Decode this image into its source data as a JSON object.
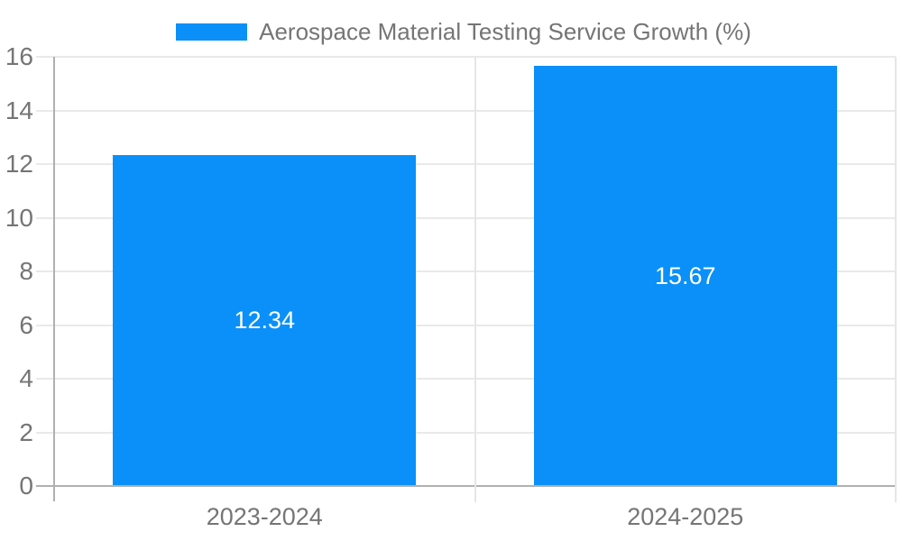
{
  "colors": {
    "bar": "#0a90f8",
    "grid": "#e9e9e9",
    "axis": "#b0b0b0",
    "divider": "#e6e6e6",
    "tick_text": "#757575",
    "data_label_text": "#ffffff",
    "background": "#ffffff"
  },
  "legend": {
    "label": "Aerospace Material Testing Service Growth (%)"
  },
  "chart_data": {
    "type": "bar",
    "title": "Aerospace Material Testing Service Growth (%)",
    "categories": [
      "2023-2024",
      "2024-2025"
    ],
    "values": [
      12.34,
      15.67
    ],
    "data_labels": [
      "12.34",
      "15.67"
    ],
    "xlabel": "",
    "ylabel": "",
    "ylim": [
      0,
      16
    ],
    "yticks": [
      0,
      2,
      4,
      6,
      8,
      10,
      12,
      14,
      16
    ],
    "grid": true,
    "legend_position": "top-center",
    "data_label_position": "inside-center"
  }
}
